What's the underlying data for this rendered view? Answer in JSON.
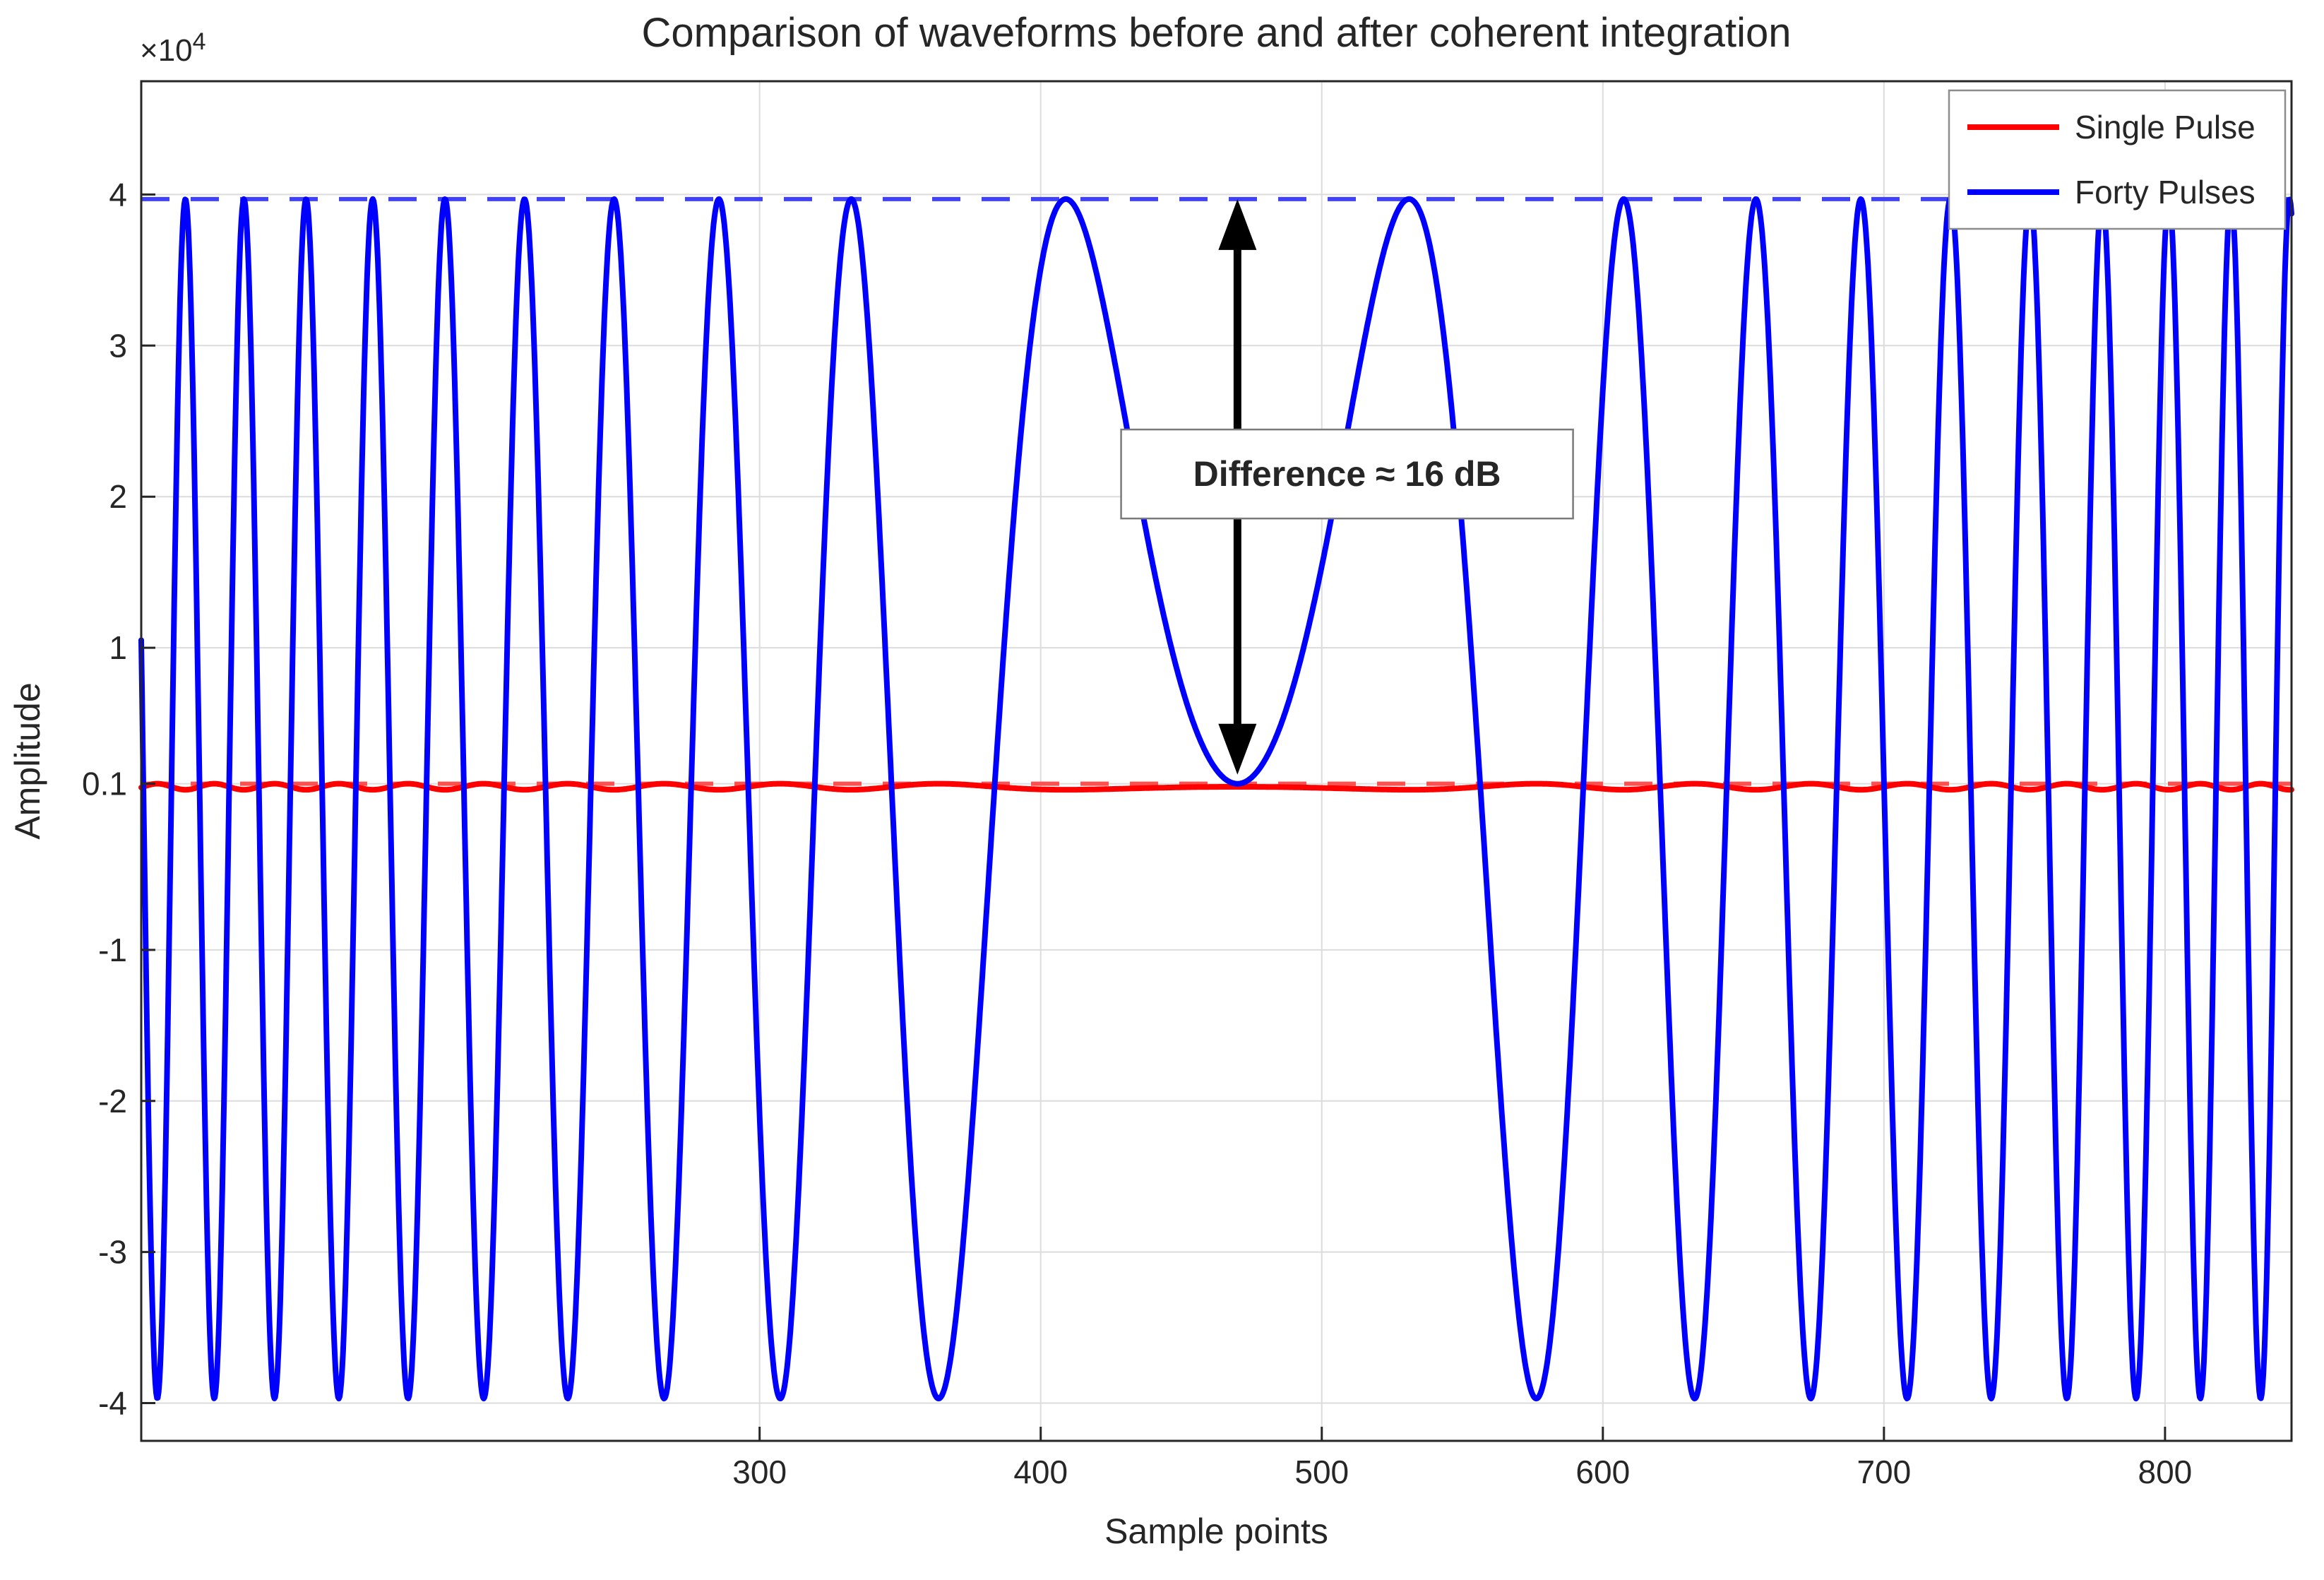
{
  "figure": {
    "title": "Comparison of waveforms before and after coherent integration"
  },
  "chart_data": {
    "type": "line",
    "title": "Comparison of waveforms before and after coherent integration",
    "xlabel": "Sample points",
    "ylabel": "Amplitude",
    "y_axis_exponent": {
      "prefix": "×10",
      "exponent": "4"
    },
    "xlim": [
      80,
      845
    ],
    "ylim": [
      -42500,
      47500
    ],
    "xticks": [
      300,
      400,
      500,
      600,
      700,
      800
    ],
    "yticks": [
      {
        "value": -40000,
        "label": "-4"
      },
      {
        "value": -30000,
        "label": "-3"
      },
      {
        "value": -20000,
        "label": "-2"
      },
      {
        "value": -10000,
        "label": "-1"
      },
      {
        "value": 1000,
        "label": "0.1"
      },
      {
        "value": 10000,
        "label": "1"
      },
      {
        "value": 20000,
        "label": "2"
      },
      {
        "value": 30000,
        "label": "3"
      },
      {
        "value": 40000,
        "label": "4"
      }
    ],
    "grid": true,
    "axis_color": "#262626",
    "grid_color": "#dcdcdc",
    "series": [
      {
        "name": "Single Pulse",
        "color": "#ff0000",
        "line_width": 8,
        "model": {
          "kind": "quadratic_phase_cosine",
          "center": 470,
          "phase0_rad": 1.5959,
          "cycles_per_sample2": 6.6e-05,
          "amplitude": 200,
          "offset": 800
        },
        "description": "single-pulse output, flat ripple near 0.1e4"
      },
      {
        "name": "Forty Pulses",
        "color": "#0000ff",
        "line_width": 8,
        "model": {
          "kind": "quadratic_phase_cosine",
          "center": 470,
          "phase0_rad": -1.5457,
          "cycles_per_sample2": 6.6e-05,
          "amplitude": 39700,
          "offset": 0
        },
        "description": "forty-pulse coherent integration output, chirp-like oscillation peaking near 4e4"
      }
    ],
    "reference_lines": [
      {
        "y": 39700,
        "color": "#4040ff",
        "style": "dashed",
        "name": "forty-pulses-peak-level"
      },
      {
        "y": 1000,
        "color": "#ff5050",
        "style": "dashed",
        "name": "single-pulse-peak-level"
      }
    ],
    "annotation": {
      "text": "Difference ≈ 16 dB",
      "arrow_x": 470,
      "arrow_y_top": 39700,
      "arrow_y_bottom": 1600,
      "box_center_x": 509,
      "box_center_y": 21500,
      "arrow_color": "#000000",
      "box_border_color": "#7a7a7a",
      "box_fill": "#ffffff",
      "text_color": "#000000"
    },
    "legend": {
      "position": "top-right",
      "entries": [
        {
          "label": "Single Pulse",
          "color": "#ff0000"
        },
        {
          "label": "Forty Pulses",
          "color": "#0000ff"
        }
      ]
    }
  }
}
